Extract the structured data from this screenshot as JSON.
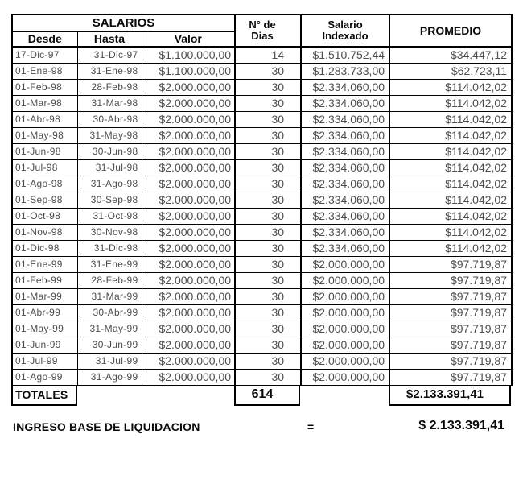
{
  "colors": {
    "border": "#000000",
    "data_text": "#4d4d4d",
    "heading_text": "#000000"
  },
  "table": {
    "header": {
      "salarios": "SALARIOS",
      "desde": "Desde",
      "hasta": "Hasta",
      "valor": "Valor",
      "dias_line1": "N° de",
      "dias_line2": "Dias",
      "salario_line1": "Salario",
      "salario_line2": "Indexado",
      "promedio": "PROMEDIO"
    },
    "rows": [
      {
        "desde": "17-Dic-97",
        "hasta": "31-Dic-97",
        "valor": "$1.100.000,00",
        "dias": "14",
        "indexado": "$1.510.752,44",
        "promedio": "$34.447,12"
      },
      {
        "desde": "01-Ene-98",
        "hasta": "31-Ene-98",
        "valor": "$1.100.000,00",
        "dias": "30",
        "indexado": "$1.283.733,00",
        "promedio": "$62.723,11"
      },
      {
        "desde": "01-Feb-98",
        "hasta": "28-Feb-98",
        "valor": "$2.000.000,00",
        "dias": "30",
        "indexado": "$2.334.060,00",
        "promedio": "$114.042,02"
      },
      {
        "desde": "01-Mar-98",
        "hasta": "31-Mar-98",
        "valor": "$2.000.000,00",
        "dias": "30",
        "indexado": "$2.334.060,00",
        "promedio": "$114.042,02"
      },
      {
        "desde": "01-Abr-98",
        "hasta": "30-Abr-98",
        "valor": "$2.000.000,00",
        "dias": "30",
        "indexado": "$2.334.060,00",
        "promedio": "$114.042,02"
      },
      {
        "desde": "01-May-98",
        "hasta": "31-May-98",
        "valor": "$2.000.000,00",
        "dias": "30",
        "indexado": "$2.334.060,00",
        "promedio": "$114.042,02"
      },
      {
        "desde": "01-Jun-98",
        "hasta": "30-Jun-98",
        "valor": "$2.000.000,00",
        "dias": "30",
        "indexado": "$2.334.060,00",
        "promedio": "$114.042,02"
      },
      {
        "desde": "01-Jul-98",
        "hasta": "31-Jul-98",
        "valor": "$2.000.000,00",
        "dias": "30",
        "indexado": "$2.334.060,00",
        "promedio": "$114.042,02"
      },
      {
        "desde": "01-Ago-98",
        "hasta": "31-Ago-98",
        "valor": "$2.000.000,00",
        "dias": "30",
        "indexado": "$2.334.060,00",
        "promedio": "$114.042,02"
      },
      {
        "desde": "01-Sep-98",
        "hasta": "30-Sep-98",
        "valor": "$2.000.000,00",
        "dias": "30",
        "indexado": "$2.334.060,00",
        "promedio": "$114.042,02"
      },
      {
        "desde": "01-Oct-98",
        "hasta": "31-Oct-98",
        "valor": "$2.000.000,00",
        "dias": "30",
        "indexado": "$2.334.060,00",
        "promedio": "$114.042,02"
      },
      {
        "desde": "01-Nov-98",
        "hasta": "30-Nov-98",
        "valor": "$2.000.000,00",
        "dias": "30",
        "indexado": "$2.334.060,00",
        "promedio": "$114.042,02"
      },
      {
        "desde": "01-Dic-98",
        "hasta": "31-Dic-98",
        "valor": "$2.000.000,00",
        "dias": "30",
        "indexado": "$2.334.060,00",
        "promedio": "$114.042,02"
      },
      {
        "desde": "01-Ene-99",
        "hasta": "31-Ene-99",
        "valor": "$2.000.000,00",
        "dias": "30",
        "indexado": "$2.000.000,00",
        "promedio": "$97.719,87"
      },
      {
        "desde": "01-Feb-99",
        "hasta": "28-Feb-99",
        "valor": "$2.000.000,00",
        "dias": "30",
        "indexado": "$2.000.000,00",
        "promedio": "$97.719,87"
      },
      {
        "desde": "01-Mar-99",
        "hasta": "31-Mar-99",
        "valor": "$2.000.000,00",
        "dias": "30",
        "indexado": "$2.000.000,00",
        "promedio": "$97.719,87"
      },
      {
        "desde": "01-Abr-99",
        "hasta": "30-Abr-99",
        "valor": "$2.000.000,00",
        "dias": "30",
        "indexado": "$2.000.000,00",
        "promedio": "$97.719,87"
      },
      {
        "desde": "01-May-99",
        "hasta": "31-May-99",
        "valor": "$2.000.000,00",
        "dias": "30",
        "indexado": "$2.000.000,00",
        "promedio": "$97.719,87"
      },
      {
        "desde": "01-Jun-99",
        "hasta": "30-Jun-99",
        "valor": "$2.000.000,00",
        "dias": "30",
        "indexado": "$2.000.000,00",
        "promedio": "$97.719,87"
      },
      {
        "desde": "01-Jul-99",
        "hasta": "31-Jul-99",
        "valor": "$2.000.000,00",
        "dias": "30",
        "indexado": "$2.000.000,00",
        "promedio": "$97.719,87"
      },
      {
        "desde": "01-Ago-99",
        "hasta": "31-Ago-99",
        "valor": "$2.000.000,00",
        "dias": "30",
        "indexado": "$2.000.000,00",
        "promedio": "$97.719,87"
      }
    ],
    "totals": {
      "label": "TOTALES",
      "dias": "614",
      "promedio": "$2.133.391,41"
    }
  },
  "footer": {
    "label": "INGRESO BASE DE LIQUIDACION",
    "equals": "=",
    "value": "$ 2.133.391,41"
  }
}
